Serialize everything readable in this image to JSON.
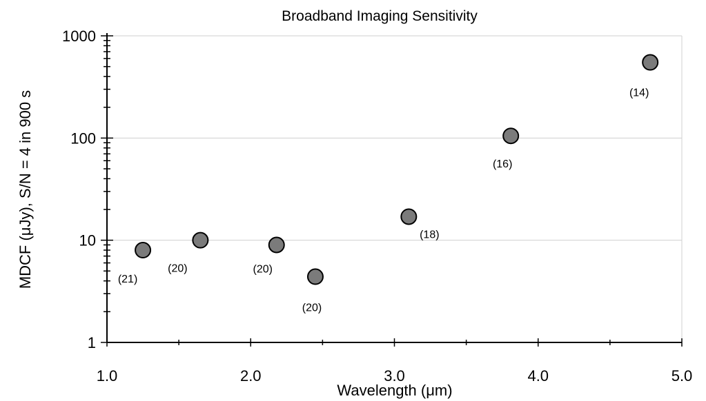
{
  "chart_data": {
    "type": "scatter",
    "title": "Broadband Imaging Sensitivity",
    "xlabel": "Wavelength (μm)",
    "ylabel": "MDCF (μJy),  S/N = 4 in 900 s",
    "xlim": [
      1.0,
      5.0
    ],
    "ylim": [
      1,
      1000
    ],
    "y_scale": "log",
    "grid": "horizontal major lines",
    "legend": "none",
    "x_ticks": [
      "1.0",
      "2.0",
      "3.0",
      "4.0",
      "5.0"
    ],
    "y_ticks": [
      "1",
      "10",
      "100",
      "1000"
    ],
    "colors": {
      "marker_fill": "#7b7b7b",
      "marker_edge": "#000000",
      "grid": "#cfcfcf"
    },
    "points": [
      {
        "x": 1.25,
        "y": 8,
        "label": "(21)"
      },
      {
        "x": 1.65,
        "y": 10,
        "label": "(20)"
      },
      {
        "x": 2.18,
        "y": 9,
        "label": "(20)"
      },
      {
        "x": 2.45,
        "y": 4.4,
        "label": "(20)"
      },
      {
        "x": 3.1,
        "y": 17,
        "label": "(18)"
      },
      {
        "x": 3.81,
        "y": 105,
        "label": "(16)"
      },
      {
        "x": 4.78,
        "y": 550,
        "label": "(14)"
      }
    ]
  }
}
